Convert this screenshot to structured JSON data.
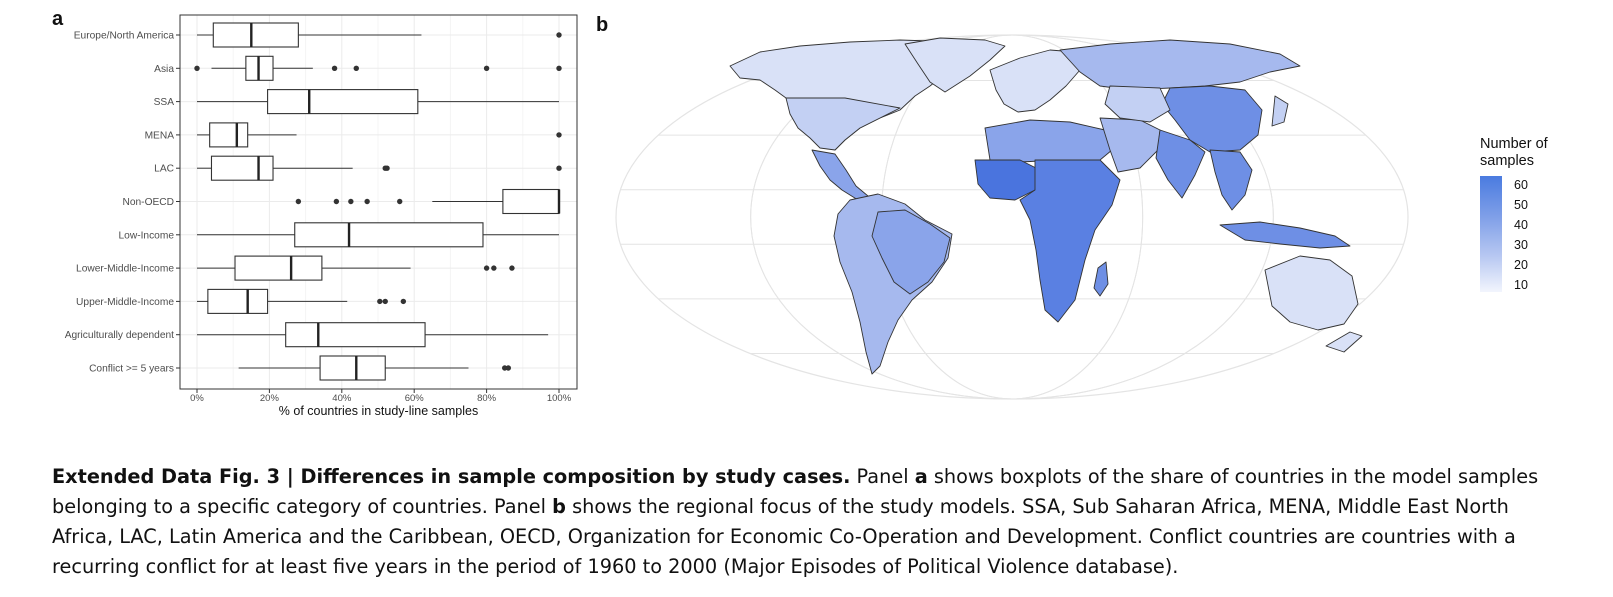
{
  "panel_a": {
    "letter": "a"
  },
  "panel_b": {
    "letter": "b"
  },
  "chart_data": [
    {
      "type": "boxplot",
      "orientation": "horizontal",
      "xlabel": "% of countries in study-line samples",
      "xlim": [
        0,
        100
      ],
      "xticks": [
        0,
        20,
        40,
        60,
        80,
        100
      ],
      "xtick_labels": [
        "0%",
        "20%",
        "40%",
        "60%",
        "80%",
        "100%"
      ],
      "grid": true,
      "categories": [
        "Europe/North America",
        "Asia",
        "SSA",
        "MENA",
        "LAC",
        "Non-OECD",
        "Low-Income",
        "Lower-Middle-Income",
        "Upper-Middle-Income",
        "Agriculturally dependent",
        "Conflict >= 5 years"
      ],
      "boxes": [
        {
          "min": 0,
          "q1": 4.5,
          "median": 15,
          "q3": 28,
          "max": 62,
          "outliers": [
            100
          ]
        },
        {
          "min": 4,
          "q1": 13.5,
          "median": 17,
          "q3": 21,
          "max": 32,
          "outliers": [
            0,
            38,
            44,
            80,
            100
          ]
        },
        {
          "min": 0,
          "q1": 19.5,
          "median": 31,
          "q3": 61,
          "max": 100,
          "outliers": []
        },
        {
          "min": 0,
          "q1": 3.5,
          "median": 11,
          "q3": 14,
          "max": 27.5,
          "outliers": [
            100
          ]
        },
        {
          "min": 0,
          "q1": 4,
          "median": 17,
          "q3": 21,
          "max": 43,
          "outliers": [
            52,
            52.5,
            100
          ]
        },
        {
          "min": 65,
          "q1": 84.5,
          "median": 100,
          "q3": 100,
          "max": 100,
          "outliers": [
            28,
            38.5,
            42.5,
            47,
            56
          ]
        },
        {
          "min": 0,
          "q1": 27,
          "median": 42,
          "q3": 79,
          "max": 100,
          "outliers": []
        },
        {
          "min": 0,
          "q1": 10.5,
          "median": 26,
          "q3": 34.5,
          "max": 59,
          "outliers": [
            80,
            82,
            87
          ]
        },
        {
          "min": 0,
          "q1": 3,
          "median": 14,
          "q3": 19.5,
          "max": 41.5,
          "outliers": [
            50.5,
            52,
            57
          ]
        },
        {
          "min": 0,
          "q1": 24.5,
          "median": 33.5,
          "q3": 63,
          "max": 97,
          "outliers": []
        },
        {
          "min": 11.5,
          "q1": 34,
          "median": 44,
          "q3": 52,
          "max": 75,
          "outliers": [
            85,
            86
          ]
        }
      ]
    },
    {
      "type": "map",
      "legend_title": "Number of samples",
      "legend_ticks": [
        60,
        50,
        40,
        30,
        20,
        10
      ],
      "colors": {
        "high": "#4a7be0",
        "low": "#f2f5fd",
        "border": "#333333",
        "graticule": "#e4e4e4"
      }
    }
  ],
  "caption": {
    "label": "Extended Data Fig. 3 | Differences in sample composition by study cases.",
    "text_1": " Panel ",
    "bold_a": "a",
    "text_2": " shows boxplots of the share of countries in the model samples belonging to a specific category of countries. Panel ",
    "bold_b": "b",
    "text_3": " shows the regional focus of the study models. SSA, Sub Saharan Africa, MENA, Middle East North Africa, LAC, Latin America and the Caribbean, OECD, Organization for Economic Co-Operation and Development. Conflict countries are countries with a recurring conflict for at least five years in the period of 1960 to 2000 (Major Episodes of Political Violence database)."
  }
}
